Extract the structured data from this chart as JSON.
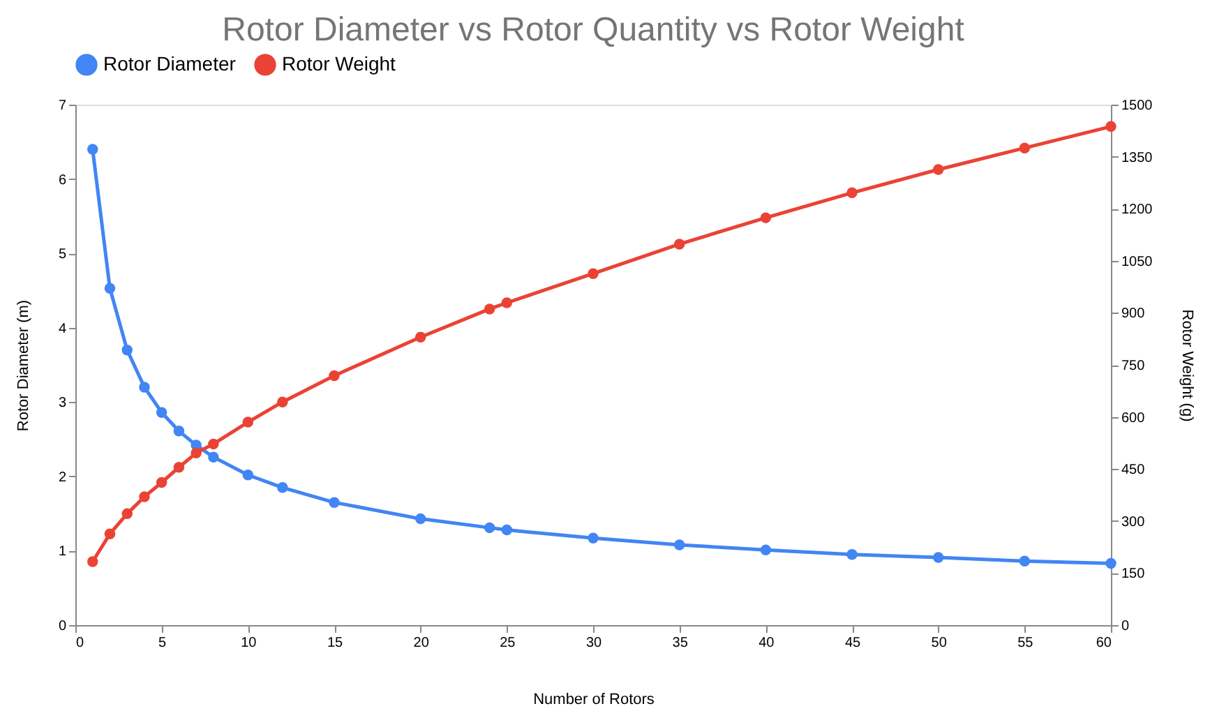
{
  "chart_data": {
    "type": "line",
    "title": "Rotor Diameter vs Rotor Quantity vs Rotor Weight",
    "xlabel": "Number of Rotors",
    "ylabel": "Rotor Diameter (m)",
    "y2label": "Rotor Weight (g)",
    "x": [
      1,
      2,
      3,
      4,
      5,
      6,
      7,
      8,
      10,
      12,
      15,
      20,
      24,
      25,
      30,
      35,
      40,
      45,
      50,
      55,
      60
    ],
    "series": [
      {
        "name": "Rotor Diameter",
        "color": "#4285f4",
        "values": [
          6.4,
          4.53,
          3.7,
          3.2,
          2.86,
          2.61,
          2.42,
          2.26,
          2.02,
          1.85,
          1.65,
          1.43,
          1.31,
          1.28,
          1.17,
          1.08,
          1.01,
          0.95,
          0.91,
          0.86,
          0.83
        ]
      },
      {
        "name": "Rotor Weight",
        "color": "#ea4335",
        "axis": "y2",
        "values": [
          183,
          263,
          321,
          370,
          411,
          455,
          496,
          522,
          585,
          643,
          719,
          830,
          911,
          929,
          1013,
          1098,
          1174,
          1246,
          1313,
          1375,
          1437
        ]
      }
    ],
    "xlim": [
      0,
      60
    ],
    "xticks": [
      0,
      5,
      10,
      15,
      20,
      25,
      30,
      35,
      40,
      45,
      50,
      55,
      60
    ],
    "ylim": [
      0,
      7
    ],
    "yticks": [
      0,
      1,
      2,
      3,
      4,
      5,
      6,
      7
    ],
    "y2lim": [
      0,
      1500
    ],
    "y2ticks": [
      0,
      150,
      300,
      450,
      600,
      750,
      900,
      1050,
      1200,
      1350,
      1500
    ],
    "legend": "top",
    "grid": false,
    "marker": "circle",
    "line_style": "solid"
  }
}
